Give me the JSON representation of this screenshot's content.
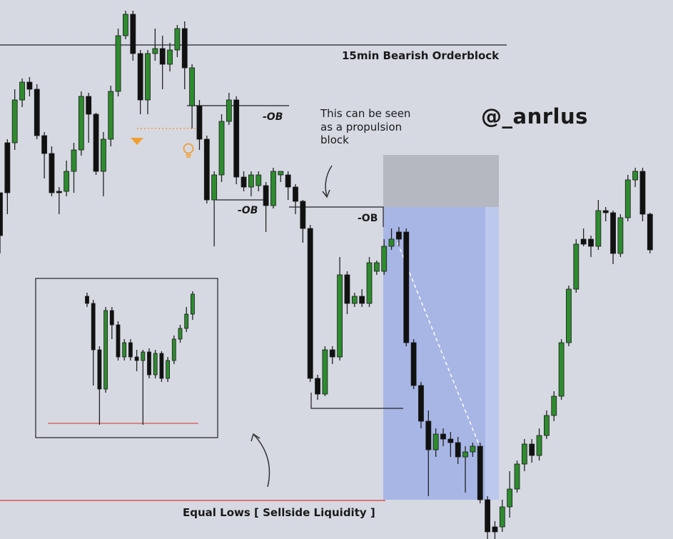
{
  "watermark": "@_anrlus",
  "chart_data": {
    "type": "candlestick",
    "annotations": {
      "orderblock_label": "15min Bearish Orderblock",
      "ob_label_1": "-OB",
      "ob_label_2": "-OB",
      "ob_label_3": "-OB",
      "propulsion_line_1": "This can be seen",
      "propulsion_line_2": "as a propulsion",
      "propulsion_line_3": "block",
      "equal_lows_label": "Equal Lows [ Sellside Liquidity ]"
    },
    "colors": {
      "bull": "#2e8b2e",
      "bear": "#111111",
      "background": "#d6d9e2",
      "sellside_line": "#d9534f",
      "marker_orange": "#f0a030",
      "shade_blue": "#a5b4e6",
      "shade_gray": "#b5b8c0"
    },
    "candles": [
      [
        0,
        330,
        270,
        270,
        355
      ],
      [
        0,
        270,
        200,
        195,
        300
      ],
      [
        1,
        200,
        140,
        125,
        210
      ],
      [
        1,
        140,
        115,
        110,
        150
      ],
      [
        0,
        115,
        125,
        108,
        135
      ],
      [
        0,
        125,
        190,
        118,
        195
      ],
      [
        0,
        190,
        215,
        185,
        250
      ],
      [
        0,
        215,
        270,
        205,
        275
      ],
      [
        0,
        270,
        268,
        262,
        300
      ],
      [
        1,
        268,
        240,
        225,
        275
      ],
      [
        1,
        240,
        210,
        200,
        270
      ],
      [
        1,
        210,
        135,
        128,
        218
      ],
      [
        0,
        135,
        160,
        130,
        200
      ],
      [
        0,
        160,
        240,
        158,
        245
      ],
      [
        1,
        240,
        195,
        185,
        275
      ],
      [
        1,
        195,
        128,
        120,
        205
      ],
      [
        1,
        128,
        50,
        40,
        135
      ],
      [
        1,
        50,
        20,
        15,
        55
      ],
      [
        0,
        20,
        75,
        15,
        85
      ],
      [
        0,
        75,
        140,
        70,
        160
      ],
      [
        1,
        140,
        75,
        70,
        160
      ],
      [
        1,
        75,
        68,
        40,
        85
      ],
      [
        0,
        68,
        90,
        50,
        125
      ],
      [
        1,
        90,
        70,
        60,
        100
      ],
      [
        1,
        70,
        40,
        35,
        80
      ],
      [
        0,
        40,
        95,
        30,
        125
      ],
      [
        1,
        95,
        148,
        90,
        180
      ],
      [
        0,
        148,
        195,
        140,
        210
      ],
      [
        0,
        195,
        280,
        190,
        285
      ],
      [
        1,
        280,
        245,
        240,
        345
      ],
      [
        1,
        245,
        170,
        160,
        255
      ],
      [
        1,
        170,
        140,
        130,
        175
      ],
      [
        0,
        140,
        248,
        135,
        258
      ],
      [
        0,
        248,
        262,
        240,
        268
      ],
      [
        1,
        262,
        245,
        240,
        275
      ],
      [
        1,
        245,
        260,
        240,
        268
      ],
      [
        0,
        260,
        288,
        255,
        325
      ],
      [
        1,
        288,
        240,
        235,
        292
      ],
      [
        1,
        240,
        245,
        240,
        255
      ],
      [
        0,
        245,
        262,
        240,
        280
      ],
      [
        0,
        262,
        282,
        258,
        300
      ],
      [
        0,
        282,
        320,
        280,
        340
      ],
      [
        0,
        320,
        530,
        315,
        535
      ],
      [
        0,
        530,
        552,
        525,
        560
      ],
      [
        1,
        552,
        490,
        485,
        555
      ],
      [
        0,
        490,
        500,
        485,
        510
      ],
      [
        1,
        500,
        385,
        360,
        505
      ],
      [
        0,
        385,
        425,
        380,
        440
      ],
      [
        1,
        425,
        415,
        410,
        430
      ],
      [
        0,
        415,
        425,
        405,
        430
      ],
      [
        1,
        425,
        368,
        360,
        430
      ],
      [
        1,
        368,
        380,
        365,
        385
      ],
      [
        1,
        380,
        345,
        335,
        385
      ],
      [
        1,
        345,
        335,
        320,
        350
      ],
      [
        0,
        335,
        325,
        318,
        345
      ],
      [
        0,
        325,
        480,
        320,
        485
      ],
      [
        0,
        480,
        540,
        475,
        545
      ],
      [
        0,
        540,
        590,
        535,
        600
      ],
      [
        0,
        590,
        630,
        575,
        695
      ],
      [
        1,
        630,
        608,
        600,
        640
      ],
      [
        0,
        608,
        615,
        600,
        625
      ],
      [
        0,
        615,
        620,
        605,
        640
      ],
      [
        0,
        620,
        640,
        612,
        650
      ],
      [
        1,
        640,
        633,
        625,
        690
      ],
      [
        1,
        633,
        625,
        620,
        640
      ],
      [
        0,
        625,
        700,
        620,
        705
      ],
      [
        0,
        700,
        745,
        695,
        755
      ],
      [
        0,
        745,
        738,
        730,
        755
      ],
      [
        1,
        738,
        710,
        700,
        745
      ],
      [
        1,
        710,
        685,
        660,
        725
      ],
      [
        1,
        685,
        650,
        645,
        690
      ],
      [
        1,
        650,
        622,
        615,
        660
      ],
      [
        0,
        622,
        638,
        615,
        648
      ],
      [
        1,
        638,
        610,
        600,
        645
      ],
      [
        1,
        610,
        582,
        575,
        615
      ],
      [
        1,
        582,
        555,
        548,
        590
      ],
      [
        1,
        555,
        480,
        475,
        560
      ],
      [
        1,
        480,
        405,
        400,
        485
      ],
      [
        1,
        405,
        342,
        335,
        410
      ],
      [
        0,
        342,
        335,
        320,
        345
      ],
      [
        0,
        335,
        345,
        330,
        360
      ],
      [
        1,
        345,
        295,
        280,
        350
      ],
      [
        0,
        295,
        298,
        290,
        310
      ],
      [
        0,
        298,
        355,
        295,
        370
      ],
      [
        1,
        355,
        305,
        300,
        360
      ],
      [
        1,
        305,
        252,
        245,
        310
      ],
      [
        1,
        252,
        240,
        235,
        262
      ],
      [
        0,
        240,
        300,
        235,
        310
      ],
      [
        0,
        300,
        350,
        298,
        355
      ]
    ],
    "inset_candles": [
      [
        0,
        415,
        425,
        410,
        430
      ],
      [
        0,
        425,
        490,
        420,
        540
      ],
      [
        0,
        490,
        545,
        485,
        595
      ],
      [
        1,
        545,
        435,
        430,
        550
      ],
      [
        0,
        435,
        455,
        430,
        475
      ],
      [
        0,
        455,
        500,
        450,
        505
      ],
      [
        1,
        500,
        480,
        475,
        505
      ],
      [
        0,
        480,
        500,
        475,
        505
      ],
      [
        0,
        500,
        505,
        490,
        520
      ],
      [
        1,
        505,
        493,
        490,
        595
      ],
      [
        0,
        493,
        525,
        488,
        530
      ],
      [
        1,
        525,
        495,
        490,
        530
      ],
      [
        0,
        495,
        530,
        492,
        535
      ],
      [
        1,
        530,
        505,
        500,
        535
      ],
      [
        1,
        505,
        475,
        470,
        510
      ],
      [
        1,
        475,
        460,
        455,
        480
      ],
      [
        1,
        460,
        440,
        430,
        465
      ],
      [
        1,
        440,
        412,
        408,
        448
      ]
    ]
  }
}
